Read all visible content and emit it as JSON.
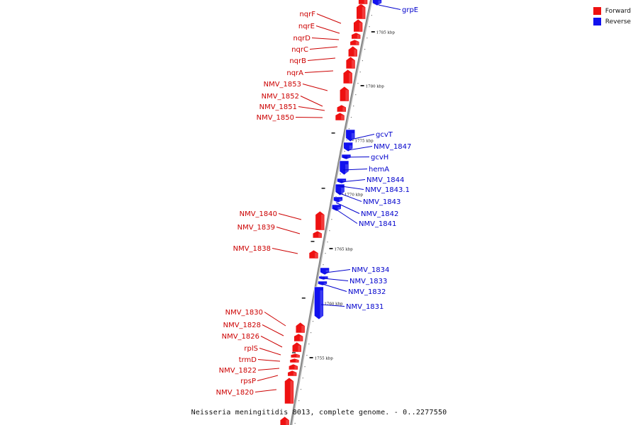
{
  "colors": {
    "forward": "#ee1111",
    "reverse": "#1111ee",
    "backbone": "#888888",
    "label_forward": "#cc0000",
    "label_reverse": "#0000cc"
  },
  "legend": {
    "forward_label": "Forward",
    "reverse_label": "Reverse"
  },
  "caption": "Neisseria meningitidis 8013, complete genome. - 0..2277550",
  "scale_marks": [
    "1785 kbp",
    "1780 kbp",
    "1775 kbp",
    "1770 kbp",
    "1765 kbp",
    "1760 kbp",
    "1755 kbp"
  ],
  "genes_forward": [
    "nqrF",
    "nqrE",
    "nqrD",
    "nqrC",
    "nqrB",
    "nqrA",
    "NMV_1853",
    "NMV_1852",
    "NMV_1851",
    "NMV_1850",
    "NMV_1840",
    "NMV_1839",
    "NMV_1838",
    "NMV_1830",
    "NMV_1828",
    "NMV_1826",
    "rplS",
    "trmD",
    "NMV_1822",
    "rpsP",
    "NMV_1820"
  ],
  "genes_reverse": [
    "grpE",
    "gcvT",
    "NMV_1847",
    "gcvH",
    "hemA",
    "NMV_1844",
    "NMV_1843.1",
    "NMV_1843",
    "NMV_1842",
    "NMV_1841",
    "NMV_1834",
    "NMV_1833",
    "NMV_1832",
    "NMV_1831"
  ]
}
